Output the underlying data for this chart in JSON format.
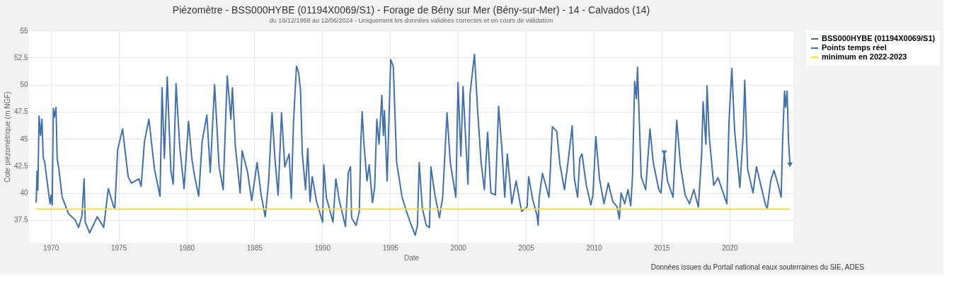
{
  "chart_data": {
    "type": "line",
    "title": "Piézomètre - BSS000HYBE (01194X0069/S1) - Forage de Bény sur Mer (Bény-sur-Mer) - 14 - Calvados (14)",
    "subtitle": "du 16/12/1968 au 12/06/2024 - Uniquement les données validées correctes et en cours de validation",
    "xlabel": "Date",
    "ylabel": "Cote piézométrique (m NGF)",
    "annotations": [
      "Données issues du Portail national eaux souterraines du SIE, ADES"
    ],
    "xlim": [
      1968.4,
      2024.7
    ],
    "xticks": [
      1970,
      1975,
      1980,
      1985,
      1990,
      1995,
      2000,
      2005,
      2010,
      2015,
      2020
    ],
    "ylim": [
      35.4,
      55
    ],
    "yticks": [
      37.5,
      40,
      42.5,
      45,
      47.5,
      50,
      52.5,
      55
    ],
    "grid": true,
    "legend": "top right",
    "line_style": "solid",
    "series": [
      {
        "name": "BSS000HYBE (01194X0069/S1)",
        "color": "#4470a8",
        "x": [
          1968.93,
          1968.99,
          1969.05,
          1969.14,
          1969.25,
          1969.35,
          1969.45,
          1969.55,
          1969.79,
          1969.95,
          1970.03,
          1970.11,
          1970.19,
          1970.27,
          1970.39,
          1970.47,
          1970.6,
          1970.84,
          1971.3,
          1971.8,
          1972.05,
          1972.3,
          1972.46,
          1972.54,
          1972.86,
          1973.43,
          1973.9,
          1974.24,
          1974.64,
          1974.72,
          1974.93,
          1975.29,
          1975.7,
          1975.94,
          1976.5,
          1976.66,
          1976.9,
          1977.23,
          1977.64,
          1978.05,
          1978.2,
          1978.37,
          1978.58,
          1978.85,
          1979.02,
          1979.23,
          1979.5,
          1979.82,
          1980.15,
          1980.39,
          1980.6,
          1980.9,
          1981.15,
          1981.5,
          1981.75,
          1982.07,
          1982.4,
          1982.7,
          1983.0,
          1983.27,
          1983.38,
          1983.6,
          1983.95,
          1984.1,
          1984.5,
          1984.8,
          1985.2,
          1985.5,
          1985.8,
          1986.05,
          1986.3,
          1986.51,
          1986.75,
          1987.0,
          1987.24,
          1987.56,
          1987.72,
          1987.88,
          1988.1,
          1988.26,
          1988.4,
          1988.53,
          1988.77,
          1988.93,
          1989.1,
          1989.26,
          1989.58,
          1990.03,
          1990.11,
          1990.3,
          1990.79,
          1991.0,
          1991.27,
          1991.71,
          1991.92,
          1992.08,
          1992.16,
          1992.49,
          1992.73,
          1992.84,
          1992.94,
          1993.05,
          1993.29,
          1993.46,
          1993.7,
          1993.86,
          1994.02,
          1994.18,
          1994.39,
          1994.5,
          1994.58,
          1994.78,
          1995.04,
          1995.23,
          1995.48,
          1995.88,
          1996.2,
          1996.53,
          1996.85,
          1997.01,
          1997.14,
          1997.37,
          1997.66,
          1997.9,
          1998.0,
          1998.3,
          1998.63,
          1998.87,
          1999.19,
          1999.43,
          1999.84,
          2000.0,
          2000.21,
          2000.37,
          2000.73,
          2000.89,
          2001.21,
          2001.45,
          2001.7,
          2001.94,
          2002.18,
          2002.42,
          2002.75,
          2002.99,
          2003.23,
          2003.44,
          2003.63,
          2003.96,
          2004.28,
          2004.68,
          2005.09,
          2005.2,
          2005.5,
          2005.82,
          2005.9,
          2005.98,
          2006.22,
          2006.7,
          2006.95,
          2007.27,
          2007.51,
          2007.84,
          2008.08,
          2008.41,
          2008.57,
          2008.81,
          2008.97,
          2009.13,
          2009.45,
          2009.78,
          2009.94,
          2010.15,
          2010.42,
          2010.75,
          2011.07,
          2011.4,
          2011.72,
          2011.88,
          2012.01,
          2012.28,
          2012.52,
          2012.72,
          2012.85,
          2013.01,
          2013.14,
          2013.22,
          2013.49,
          2013.82,
          2014.14,
          2014.38,
          2014.79,
          2014.95,
          2015.19,
          2015.43,
          2015.84,
          2016.11,
          2016.4,
          2016.73,
          2017.05,
          2017.37,
          2017.7,
          2017.94,
          2018.05,
          2018.26,
          2018.34,
          2018.5,
          2018.83,
          2019.15,
          2019.8,
          2019.96,
          2020.17,
          2020.37,
          2020.76,
          2021.0,
          2021.12,
          2021.33,
          2021.73,
          2021.98,
          2022.38,
          2022.67,
          2022.78,
          2023.03,
          2023.27,
          2023.59,
          2023.8,
          2023.91,
          2024.05,
          2024.13,
          2024.24,
          2024.34,
          2024.45
        ],
        "values": [
          39.1,
          42.0,
          40.25,
          47.1,
          45.3,
          46.8,
          43.2,
          42.9,
          40.5,
          39.0,
          39.8,
          38.9,
          47.8,
          47.0,
          47.9,
          43.2,
          42.2,
          39.6,
          38.1,
          37.5,
          36.8,
          37.9,
          41.3,
          37.3,
          36.3,
          37.8,
          36.8,
          40.4,
          38.7,
          38.6,
          44.0,
          45.9,
          41.5,
          40.9,
          41.3,
          40.6,
          44.7,
          46.8,
          42.2,
          39.7,
          49.7,
          43.2,
          50.7,
          42.0,
          40.8,
          50.1,
          44.3,
          40.4,
          46.6,
          43.2,
          41.5,
          39.7,
          44.7,
          47.2,
          41.9,
          50.0,
          42.4,
          40.3,
          50.8,
          46.8,
          49.7,
          44.3,
          40.0,
          43.9,
          41.9,
          39.3,
          42.8,
          39.8,
          37.8,
          41.1,
          47.4,
          43.2,
          39.8,
          47.4,
          42.4,
          43.6,
          39.5,
          46.5,
          51.7,
          51.1,
          49.4,
          43.6,
          40.3,
          44.1,
          39.2,
          41.5,
          39.2,
          37.3,
          42.6,
          39.6,
          37.3,
          41.3,
          39.2,
          36.9,
          41.9,
          42.4,
          37.7,
          37.0,
          38.3,
          44.7,
          47.5,
          44.9,
          41.1,
          42.6,
          39.1,
          40.5,
          46.8,
          44.5,
          49.0,
          45.3,
          47.6,
          41.1,
          52.3,
          51.7,
          42.8,
          39.6,
          38.3,
          37.1,
          36.1,
          37.0,
          42.8,
          38.6,
          37.0,
          36.8,
          42.4,
          39.8,
          37.7,
          39.6,
          47.4,
          42.8,
          39.6,
          50.2,
          43.4,
          49.8,
          40.8,
          49.2,
          52.8,
          47.5,
          42.8,
          40.3,
          45.6,
          40.0,
          39.8,
          48.0,
          44.1,
          39.6,
          43.6,
          39.0,
          41.1,
          38.3,
          38.7,
          41.5,
          39.4,
          37.9,
          37.0,
          39.6,
          41.8,
          39.6,
          46.1,
          45.7,
          42.6,
          40.3,
          42.6,
          46.2,
          41.3,
          39.6,
          43.2,
          43.6,
          40.7,
          38.9,
          39.8,
          45.2,
          41.3,
          39.0,
          40.9,
          39.2,
          38.7,
          37.6,
          40.0,
          39.0,
          40.3,
          38.8,
          41.5,
          50.3,
          48.7,
          51.6,
          41.5,
          40.3,
          45.9,
          42.8,
          40.3,
          40.0,
          43.7,
          41.1,
          39.6,
          46.7,
          42.4,
          39.8,
          39.0,
          40.3,
          38.7,
          43.4,
          48.4,
          44.5,
          49.9,
          45.3,
          40.7,
          41.4,
          39.0,
          46.6,
          51.5,
          45.8,
          40.5,
          45.3,
          50.4,
          42.2,
          40.0,
          42.4,
          40.3,
          38.8,
          38.6,
          41.1,
          42.1,
          40.7,
          39.6,
          44.9,
          49.4,
          47.9,
          49.4,
          44.9,
          42.6
        ]
      },
      {
        "name": "Points temps réel",
        "type": "scatter",
        "marker": "triangle",
        "color": "#4470a8",
        "x": [
          2015.19,
          2024.45
        ],
        "values": [
          43.7,
          42.6
        ]
      },
      {
        "name": "minimum en 2022-2023",
        "color": "#f5dc3c",
        "x": [
          1968.93,
          2024.45
        ],
        "values": [
          38.5,
          38.5
        ]
      }
    ]
  }
}
